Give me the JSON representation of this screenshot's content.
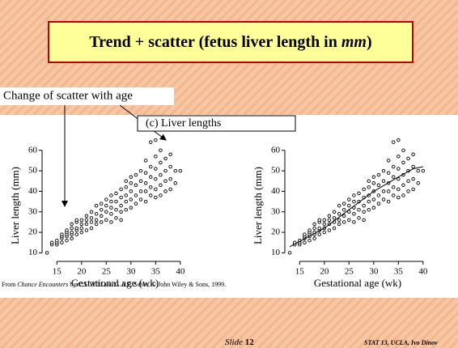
{
  "title_parts": [
    "Trend + scatter (fetus liver length in ",
    "mm",
    ")"
  ],
  "annotation": "Change of scatter with age",
  "panel_label": "(c) Liver lengths",
  "source_parts": [
    "From ",
    "Chance Encounters",
    " by C.J. Wild and G.A.F. Seber, © John Wiley & Sons, 1999."
  ],
  "slide_label": "Slide ",
  "slide_number": "12",
  "course": "STAT 13, UCLA, Ivo Dinov",
  "chart_data": [
    {
      "type": "scatter",
      "x_label": "Gestational age (wk)",
      "y_label": "Liver length (mm)",
      "xlim": [
        12,
        41.5
      ],
      "ylim": [
        7,
        67
      ],
      "xticks": [
        15,
        20,
        25,
        30,
        35,
        40
      ],
      "yticks": [
        10,
        20,
        30,
        40,
        50,
        60
      ],
      "series": [
        {
          "color": "#000000",
          "style": "points",
          "x": [
            13,
            14,
            14,
            15,
            15,
            15,
            16,
            16,
            16,
            16,
            17,
            17,
            17,
            17,
            17,
            18,
            18,
            18,
            18,
            18,
            19,
            19,
            19,
            19,
            19,
            20,
            20,
            20,
            20,
            21,
            21,
            21,
            21,
            22,
            22,
            22,
            22,
            23,
            23,
            23,
            23,
            24,
            24,
            24,
            24,
            25,
            25,
            25,
            25,
            26,
            26,
            26,
            26,
            26,
            27,
            27,
            27,
            27,
            28,
            28,
            28,
            28,
            28,
            29,
            29,
            29,
            29,
            29,
            30,
            30,
            30,
            30,
            30,
            31,
            31,
            31,
            31,
            32,
            32,
            32,
            32,
            33,
            33,
            33,
            33,
            33,
            34,
            34,
            34,
            34,
            34,
            35,
            35,
            35,
            35,
            35,
            35,
            36,
            36,
            36,
            36,
            36,
            37,
            37,
            37,
            37,
            38,
            38,
            38,
            38,
            39,
            39,
            40
          ],
          "values": [
            10,
            14,
            15,
            14,
            15,
            16,
            15,
            17,
            18,
            19,
            16,
            18,
            19,
            20,
            21,
            17,
            19,
            20,
            22,
            24,
            19,
            21,
            22,
            25,
            26,
            20,
            22,
            24,
            26,
            21,
            24,
            26,
            28,
            22,
            25,
            27,
            30,
            24,
            26,
            29,
            33,
            25,
            28,
            31,
            34,
            26,
            30,
            33,
            36,
            25,
            29,
            32,
            35,
            38,
            27,
            31,
            35,
            39,
            26,
            30,
            33,
            37,
            41,
            31,
            35,
            38,
            42,
            45,
            32,
            36,
            40,
            44,
            47,
            34,
            38,
            43,
            48,
            36,
            40,
            45,
            50,
            35,
            40,
            44,
            49,
            55,
            38,
            42,
            47,
            52,
            64,
            37,
            41,
            46,
            51,
            57,
            65,
            38,
            43,
            48,
            54,
            60,
            40,
            45,
            50,
            56,
            41,
            46,
            52,
            58,
            44,
            50,
            50
          ]
        }
      ]
    },
    {
      "type": "scatter",
      "x_label": "Gestational age (wk)",
      "y_label": "Liver length (mm)",
      "xlim": [
        12,
        41.5
      ],
      "ylim": [
        7,
        67
      ],
      "xticks": [
        15,
        20,
        25,
        30,
        35,
        40
      ],
      "yticks": [
        10,
        20,
        30,
        40,
        50,
        60
      ],
      "series": [
        {
          "color": "#000000",
          "style": "points",
          "x": [
            13,
            14,
            14,
            15,
            15,
            15,
            16,
            16,
            16,
            16,
            17,
            17,
            17,
            17,
            17,
            18,
            18,
            18,
            18,
            18,
            19,
            19,
            19,
            19,
            19,
            20,
            20,
            20,
            20,
            21,
            21,
            21,
            21,
            22,
            22,
            22,
            22,
            23,
            23,
            23,
            23,
            24,
            24,
            24,
            24,
            25,
            25,
            25,
            25,
            26,
            26,
            26,
            26,
            26,
            27,
            27,
            27,
            27,
            28,
            28,
            28,
            28,
            28,
            29,
            29,
            29,
            29,
            29,
            30,
            30,
            30,
            30,
            30,
            31,
            31,
            31,
            31,
            32,
            32,
            32,
            32,
            33,
            33,
            33,
            33,
            33,
            34,
            34,
            34,
            34,
            34,
            35,
            35,
            35,
            35,
            35,
            35,
            36,
            36,
            36,
            36,
            36,
            37,
            37,
            37,
            37,
            38,
            38,
            38,
            38,
            39,
            39,
            40
          ],
          "values": [
            10,
            14,
            15,
            14,
            15,
            16,
            15,
            17,
            18,
            19,
            16,
            18,
            19,
            20,
            21,
            17,
            19,
            20,
            22,
            24,
            19,
            21,
            22,
            25,
            26,
            20,
            22,
            24,
            26,
            21,
            24,
            26,
            28,
            22,
            25,
            27,
            30,
            24,
            26,
            29,
            33,
            25,
            28,
            31,
            34,
            26,
            30,
            33,
            36,
            25,
            29,
            32,
            35,
            38,
            27,
            31,
            35,
            39,
            26,
            30,
            33,
            37,
            41,
            31,
            35,
            38,
            42,
            45,
            32,
            36,
            40,
            44,
            47,
            34,
            38,
            43,
            48,
            36,
            40,
            45,
            50,
            35,
            40,
            44,
            49,
            55,
            38,
            42,
            47,
            52,
            64,
            37,
            41,
            46,
            51,
            57,
            65,
            38,
            43,
            48,
            54,
            60,
            40,
            45,
            50,
            56,
            41,
            46,
            52,
            58,
            44,
            50,
            50
          ]
        },
        {
          "color": "#000000",
          "style": "line",
          "x": [
            13,
            20,
            25,
            30,
            35,
            38,
            40
          ],
          "values": [
            13,
            22,
            31,
            40,
            47,
            51,
            52
          ]
        }
      ]
    }
  ]
}
